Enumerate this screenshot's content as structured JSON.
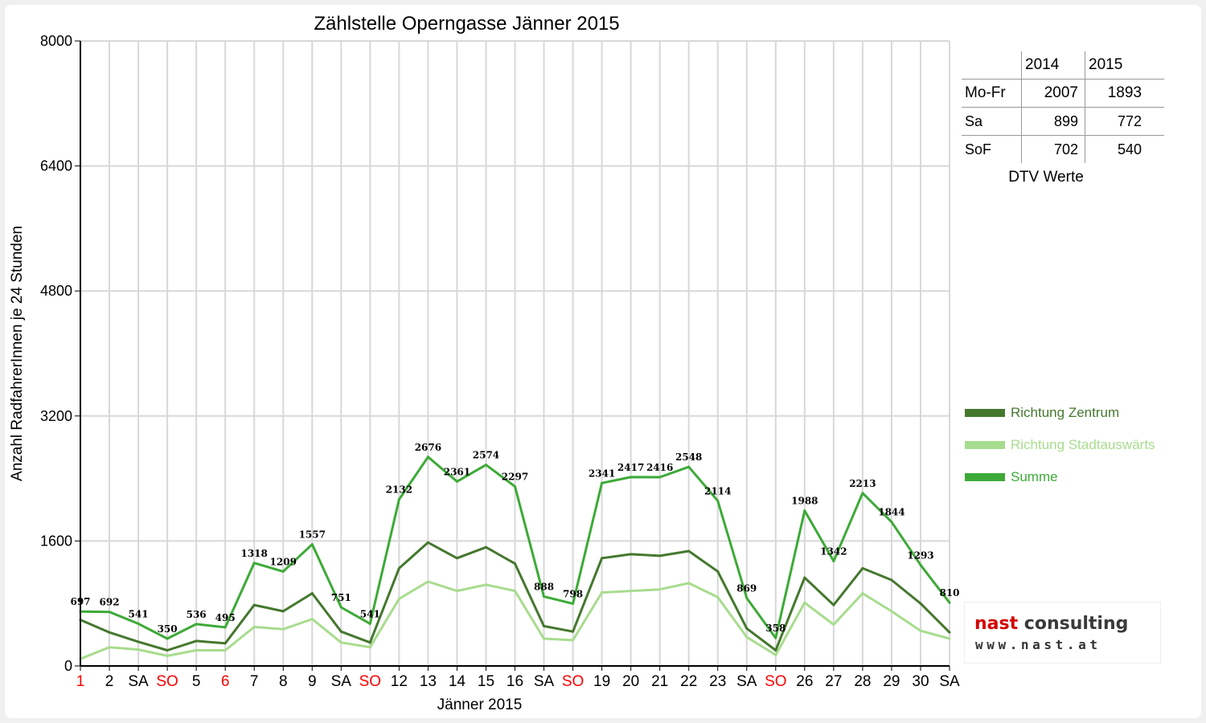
{
  "chart_data": {
    "type": "line",
    "title": "Zählstelle Operngasse Jänner 2015",
    "xlabel": "Jänner 2015",
    "ylabel": "Anzahl RadfahrerInnen je 24 Stunden",
    "ylim": [
      0,
      8000
    ],
    "yticks": [
      0,
      1600,
      3200,
      4800,
      6400,
      8000
    ],
    "grid": true,
    "legend_position": "right",
    "categories": [
      "1",
      "2",
      "SA",
      "SO",
      "5",
      "6",
      "7",
      "8",
      "9",
      "SA",
      "SO",
      "12",
      "13",
      "14",
      "15",
      "16",
      "SA",
      "SO",
      "19",
      "20",
      "21",
      "22",
      "23",
      "SA",
      "SO",
      "26",
      "27",
      "28",
      "29",
      "30",
      "SA"
    ],
    "category_colors": [
      "#ff0000",
      "#000000",
      "#000000",
      "#ff0000",
      "#000000",
      "#ff0000",
      "#000000",
      "#000000",
      "#000000",
      "#000000",
      "#ff0000",
      "#000000",
      "#000000",
      "#000000",
      "#000000",
      "#000000",
      "#000000",
      "#ff0000",
      "#000000",
      "#000000",
      "#000000",
      "#000000",
      "#000000",
      "#000000",
      "#ff0000",
      "#000000",
      "#000000",
      "#000000",
      "#000000",
      "#000000",
      "#000000"
    ],
    "series": [
      {
        "name": "Richtung Zentrum",
        "color": "#45782f",
        "values": [
          590,
          430,
          310,
          200,
          320,
          290,
          780,
          700,
          930,
          440,
          300,
          1250,
          1580,
          1380,
          1520,
          1310,
          510,
          440,
          1380,
          1430,
          1410,
          1470,
          1210,
          480,
          200,
          1130,
          780,
          1250,
          1100,
          800,
          430
        ]
      },
      {
        "name": "Richtung Stadtauswärts",
        "color": "#a8dc8e",
        "values": [
          90,
          240,
          210,
          130,
          200,
          200,
          500,
          470,
          600,
          300,
          240,
          860,
          1080,
          960,
          1040,
          960,
          350,
          330,
          940,
          960,
          980,
          1060,
          880,
          370,
          140,
          810,
          530,
          930,
          700,
          450,
          350
        ]
      },
      {
        "name": "Summe",
        "color": "#3daa37",
        "values": [
          697,
          692,
          541,
          350,
          536,
          495,
          1318,
          1209,
          1557,
          751,
          541,
          2132,
          2676,
          2361,
          2574,
          2297,
          888,
          798,
          2341,
          2417,
          2416,
          2548,
          2114,
          869,
          358,
          1988,
          1342,
          2213,
          1844,
          1293,
          810
        ],
        "data_labels": [
          "697",
          "692",
          "541",
          "350",
          "536",
          "495",
          "1318",
          "1209",
          "1557",
          "751",
          "541",
          "2132",
          "2676",
          "2361",
          "2574",
          "2297",
          "888",
          "798",
          "2341",
          "2417",
          "2416",
          "2548",
          "2114",
          "869",
          "358",
          "1988",
          "1342",
          "2213",
          "1844",
          "1293",
          "810"
        ]
      }
    ]
  },
  "dtv_table": {
    "header": [
      "",
      "2014",
      "2015"
    ],
    "rows": [
      [
        "Mo-Fr",
        "2007",
        "1893"
      ],
      [
        "Sa",
        "899",
        "772"
      ],
      [
        "SoF",
        "702",
        "540"
      ]
    ],
    "caption": "DTV Werte"
  },
  "logo": {
    "text_main_1": "nast",
    "text_main_2": " consulting",
    "text_sub": "www.nast.at",
    "color_red": "#d40000",
    "color_dark": "#3a3a3a"
  }
}
